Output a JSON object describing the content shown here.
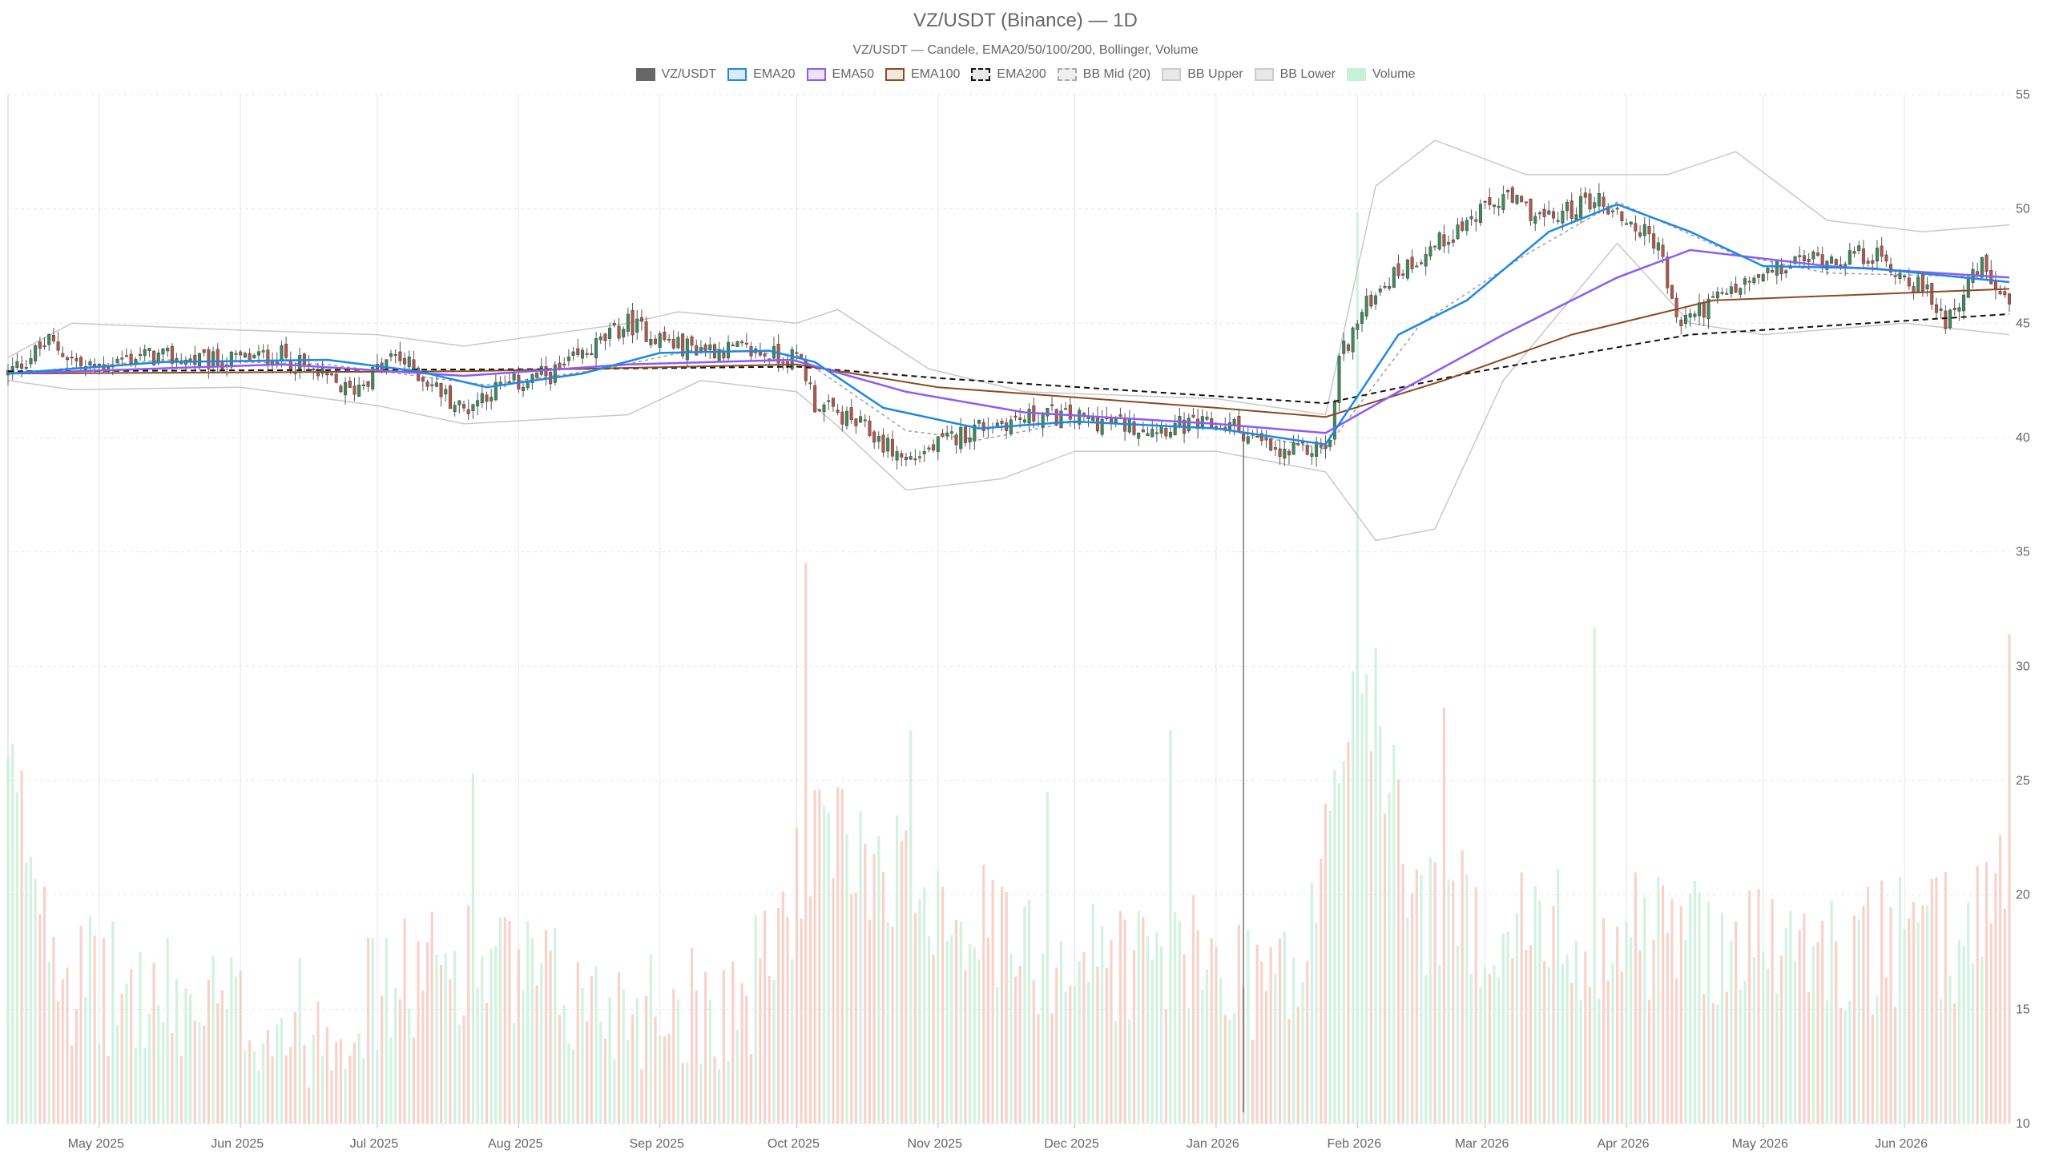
{
  "chart_data": {
    "type": "candlestick",
    "title": "VZ/USDT (Binance) — 1D",
    "subtitle": "VZ/USDT — Candele, EMA20/50/100/200, Bollinger, Volume",
    "legend": [
      {
        "label": "VZ/USDT",
        "fill": "#666666",
        "stroke": "#666666",
        "dash": false
      },
      {
        "label": "EMA20",
        "fill": "#dbeafe",
        "stroke": "#1e88e5",
        "dash": false
      },
      {
        "label": "EMA50",
        "fill": "#ede4fb",
        "stroke": "#8b5cf6",
        "dash": false
      },
      {
        "label": "EMA100",
        "fill": "#f3e6dc",
        "stroke": "#8b4a24",
        "dash": false
      },
      {
        "label": "EMA200",
        "fill": "#e8e8e8",
        "stroke": "#111111",
        "dash": true
      },
      {
        "label": "BB Mid (20)",
        "fill": "#efefef",
        "stroke": "#aaaaaa",
        "dash": true
      },
      {
        "label": "BB Upper",
        "fill": "#e8e8e8",
        "stroke": "#cccccc",
        "dash": false
      },
      {
        "label": "BB Lower",
        "fill": "#e8e8e8",
        "stroke": "#cccccc",
        "dash": false
      },
      {
        "label": "Volume",
        "fill": "#c8f0d8",
        "stroke": "#c8f0d8",
        "dash": false
      }
    ],
    "colors": {
      "up": "#3d8a5a",
      "down": "#b5564a",
      "vol_up": "#c8f0d8",
      "vol_down": "#f8c9c0",
      "ema20": "#1e88e5",
      "ema50": "#8b5cf6",
      "ema100": "#8b4a24",
      "ema200": "#111111",
      "bb_band": "#c8c8c8",
      "bb_mid": "#9e9e9e",
      "grid": "#e6e6e6"
    },
    "x_axis": {
      "start": "2025-04-11",
      "end": "2026-06-24",
      "ticks": [
        {
          "date": "2025-05-01",
          "label": "May 2025"
        },
        {
          "date": "2025-06-01",
          "label": "Jun 2025"
        },
        {
          "date": "2025-07-01",
          "label": "Jul 2025"
        },
        {
          "date": "2025-08-01",
          "label": "Aug 2025"
        },
        {
          "date": "2025-09-01",
          "label": "Sep 2025"
        },
        {
          "date": "2025-10-01",
          "label": "Oct 2025"
        },
        {
          "date": "2025-11-01",
          "label": "Nov 2025"
        },
        {
          "date": "2025-12-01",
          "label": "Dec 2025"
        },
        {
          "date": "2026-01-01",
          "label": "Jan 2026"
        },
        {
          "date": "2026-02-01",
          "label": "Feb 2026"
        },
        {
          "date": "2026-03-01",
          "label": "Mar 2026"
        },
        {
          "date": "2026-04-01",
          "label": "Apr 2026"
        },
        {
          "date": "2026-05-01",
          "label": "May 2026"
        },
        {
          "date": "2026-06-01",
          "label": "Jun 2026"
        }
      ]
    },
    "y_axis": {
      "min": 10,
      "max": 55,
      "ticks": [
        10,
        15,
        20,
        25,
        30,
        35,
        40,
        45,
        50,
        55
      ],
      "position": "right"
    },
    "volume_scale_max": 55,
    "price_path": [
      {
        "date": "2025-04-11",
        "close": 42.8
      },
      {
        "date": "2025-04-20",
        "close": 44.2
      },
      {
        "date": "2025-04-28",
        "close": 43.0
      },
      {
        "date": "2025-05-10",
        "close": 43.6
      },
      {
        "date": "2025-05-25",
        "close": 43.3
      },
      {
        "date": "2025-06-10",
        "close": 43.6
      },
      {
        "date": "2025-06-25",
        "close": 42.0
      },
      {
        "date": "2025-07-05",
        "close": 43.6
      },
      {
        "date": "2025-07-20",
        "close": 41.2
      },
      {
        "date": "2025-07-25",
        "close": 42.0
      },
      {
        "date": "2025-08-10",
        "close": 42.9
      },
      {
        "date": "2025-08-25",
        "close": 45.0
      },
      {
        "date": "2025-09-05",
        "close": 44.0
      },
      {
        "date": "2025-09-20",
        "close": 43.8
      },
      {
        "date": "2025-10-02",
        "close": 43.4
      },
      {
        "date": "2025-10-05",
        "close": 41.5
      },
      {
        "date": "2025-10-15",
        "close": 40.5
      },
      {
        "date": "2025-10-25",
        "close": 39.0
      },
      {
        "date": "2025-11-10",
        "close": 40.5
      },
      {
        "date": "2025-11-25",
        "close": 41.0
      },
      {
        "date": "2025-12-15",
        "close": 40.5
      },
      {
        "date": "2026-01-05",
        "close": 40.5
      },
      {
        "date": "2026-01-15",
        "close": 39.2
      },
      {
        "date": "2026-01-26",
        "close": 39.7
      },
      {
        "date": "2026-01-28",
        "close": 43.5
      },
      {
        "date": "2026-02-05",
        "close": 46.5
      },
      {
        "date": "2026-02-15",
        "close": 48.0
      },
      {
        "date": "2026-03-05",
        "close": 50.5
      },
      {
        "date": "2026-03-15",
        "close": 49.5
      },
      {
        "date": "2026-03-25",
        "close": 50.5
      },
      {
        "date": "2026-04-08",
        "close": 48.5
      },
      {
        "date": "2026-04-12",
        "close": 45.0
      },
      {
        "date": "2026-04-25",
        "close": 46.5
      },
      {
        "date": "2026-05-10",
        "close": 47.8
      },
      {
        "date": "2026-05-25",
        "close": 48.0
      },
      {
        "date": "2026-06-05",
        "close": 46.5
      },
      {
        "date": "2026-06-10",
        "close": 45.2
      },
      {
        "date": "2026-06-18",
        "close": 47.5
      },
      {
        "date": "2026-06-24",
        "close": 45.5
      }
    ],
    "ema20": [
      {
        "date": "2025-04-11",
        "v": 42.8
      },
      {
        "date": "2025-05-15",
        "v": 43.3
      },
      {
        "date": "2025-06-20",
        "v": 43.4
      },
      {
        "date": "2025-07-10",
        "v": 42.9
      },
      {
        "date": "2025-07-25",
        "v": 42.2
      },
      {
        "date": "2025-08-15",
        "v": 42.8
      },
      {
        "date": "2025-09-01",
        "v": 43.7
      },
      {
        "date": "2025-09-25",
        "v": 43.8
      },
      {
        "date": "2025-10-05",
        "v": 43.3
      },
      {
        "date": "2025-10-20",
        "v": 41.3
      },
      {
        "date": "2025-11-10",
        "v": 40.4
      },
      {
        "date": "2025-12-01",
        "v": 40.7
      },
      {
        "date": "2026-01-01",
        "v": 40.4
      },
      {
        "date": "2026-01-25",
        "v": 39.7
      },
      {
        "date": "2026-02-10",
        "v": 44.5
      },
      {
        "date": "2026-02-25",
        "v": 46.0
      },
      {
        "date": "2026-03-15",
        "v": 49.0
      },
      {
        "date": "2026-03-30",
        "v": 50.2
      },
      {
        "date": "2026-04-15",
        "v": 49.0
      },
      {
        "date": "2026-05-01",
        "v": 47.5
      },
      {
        "date": "2026-05-25",
        "v": 47.4
      },
      {
        "date": "2026-06-24",
        "v": 46.8
      }
    ],
    "ema50": [
      {
        "date": "2025-04-11",
        "v": 42.8
      },
      {
        "date": "2025-06-10",
        "v": 43.2
      },
      {
        "date": "2025-07-20",
        "v": 42.7
      },
      {
        "date": "2025-08-25",
        "v": 43.2
      },
      {
        "date": "2025-09-30",
        "v": 43.4
      },
      {
        "date": "2025-10-25",
        "v": 42.0
      },
      {
        "date": "2025-11-20",
        "v": 41.1
      },
      {
        "date": "2026-01-01",
        "v": 40.6
      },
      {
        "date": "2026-01-25",
        "v": 40.2
      },
      {
        "date": "2026-02-10",
        "v": 42.0
      },
      {
        "date": "2026-03-05",
        "v": 44.5
      },
      {
        "date": "2026-03-30",
        "v": 47.0
      },
      {
        "date": "2026-04-15",
        "v": 48.2
      },
      {
        "date": "2026-05-15",
        "v": 47.5
      },
      {
        "date": "2026-06-24",
        "v": 47.0
      }
    ],
    "ema100": [
      {
        "date": "2025-04-11",
        "v": 42.8
      },
      {
        "date": "2025-07-20",
        "v": 42.9
      },
      {
        "date": "2025-10-01",
        "v": 43.2
      },
      {
        "date": "2025-11-01",
        "v": 42.2
      },
      {
        "date": "2026-01-01",
        "v": 41.3
      },
      {
        "date": "2026-01-25",
        "v": 40.9
      },
      {
        "date": "2026-02-20",
        "v": 42.5
      },
      {
        "date": "2026-03-20",
        "v": 44.5
      },
      {
        "date": "2026-04-20",
        "v": 46.0
      },
      {
        "date": "2026-06-24",
        "v": 46.5
      }
    ],
    "ema200": [
      {
        "date": "2025-04-11",
        "v": 42.9
      },
      {
        "date": "2025-08-15",
        "v": 43.0
      },
      {
        "date": "2025-10-01",
        "v": 43.1
      },
      {
        "date": "2025-11-01",
        "v": 42.6
      },
      {
        "date": "2026-01-25",
        "v": 41.5
      },
      {
        "date": "2026-02-25",
        "v": 42.8
      },
      {
        "date": "2026-04-15",
        "v": 44.5
      },
      {
        "date": "2026-06-24",
        "v": 45.4
      }
    ],
    "bb_mid": [
      {
        "date": "2025-04-11",
        "v": 42.8
      },
      {
        "date": "2025-05-15",
        "v": 43.4
      },
      {
        "date": "2025-06-20",
        "v": 43.2
      },
      {
        "date": "2025-07-25",
        "v": 42.3
      },
      {
        "date": "2025-08-20",
        "v": 43.0
      },
      {
        "date": "2025-09-10",
        "v": 43.9
      },
      {
        "date": "2025-10-01",
        "v": 43.6
      },
      {
        "date": "2025-10-25",
        "v": 40.3
      },
      {
        "date": "2025-11-10",
        "v": 39.9
      },
      {
        "date": "2025-12-01",
        "v": 40.7
      },
      {
        "date": "2026-01-01",
        "v": 40.4
      },
      {
        "date": "2026-01-25",
        "v": 39.5
      },
      {
        "date": "2026-02-15",
        "v": 45.0
      },
      {
        "date": "2026-03-10",
        "v": 48.0
      },
      {
        "date": "2026-03-30",
        "v": 50.3
      },
      {
        "date": "2026-04-25",
        "v": 48.0
      },
      {
        "date": "2026-05-15",
        "v": 47.2
      },
      {
        "date": "2026-06-24",
        "v": 47.0
      }
    ],
    "bb_upper": [
      {
        "date": "2025-04-11",
        "v": 43.5
      },
      {
        "date": "2025-04-25",
        "v": 45.0
      },
      {
        "date": "2025-06-01",
        "v": 44.7
      },
      {
        "date": "2025-07-01",
        "v": 44.5
      },
      {
        "date": "2025-07-20",
        "v": 44.0
      },
      {
        "date": "2025-08-25",
        "v": 45.0
      },
      {
        "date": "2025-09-05",
        "v": 45.5
      },
      {
        "date": "2025-10-01",
        "v": 45.0
      },
      {
        "date": "2025-10-10",
        "v": 45.6
      },
      {
        "date": "2025-10-30",
        "v": 43.0
      },
      {
        "date": "2025-11-20",
        "v": 42.0
      },
      {
        "date": "2026-01-01",
        "v": 41.7
      },
      {
        "date": "2026-01-25",
        "v": 41.0
      },
      {
        "date": "2026-02-05",
        "v": 51.0
      },
      {
        "date": "2026-02-18",
        "v": 53.0
      },
      {
        "date": "2026-03-10",
        "v": 51.5
      },
      {
        "date": "2026-04-10",
        "v": 51.5
      },
      {
        "date": "2026-04-25",
        "v": 52.5
      },
      {
        "date": "2026-05-15",
        "v": 49.5
      },
      {
        "date": "2026-06-05",
        "v": 49.0
      },
      {
        "date": "2026-06-24",
        "v": 49.3
      }
    ],
    "bb_lower": [
      {
        "date": "2025-04-11",
        "v": 42.5
      },
      {
        "date": "2025-04-25",
        "v": 42.1
      },
      {
        "date": "2025-06-01",
        "v": 42.2
      },
      {
        "date": "2025-07-01",
        "v": 41.4
      },
      {
        "date": "2025-07-20",
        "v": 40.6
      },
      {
        "date": "2025-08-25",
        "v": 41.0
      },
      {
        "date": "2025-09-10",
        "v": 42.5
      },
      {
        "date": "2025-10-01",
        "v": 42.0
      },
      {
        "date": "2025-10-10",
        "v": 40.5
      },
      {
        "date": "2025-10-25",
        "v": 37.7
      },
      {
        "date": "2025-11-15",
        "v": 38.2
      },
      {
        "date": "2025-12-01",
        "v": 39.4
      },
      {
        "date": "2026-01-01",
        "v": 39.4
      },
      {
        "date": "2026-01-25",
        "v": 38.5
      },
      {
        "date": "2026-02-05",
        "v": 35.5
      },
      {
        "date": "2026-02-18",
        "v": 36.0
      },
      {
        "date": "2026-03-05",
        "v": 42.5
      },
      {
        "date": "2026-03-30",
        "v": 48.5
      },
      {
        "date": "2026-04-15",
        "v": 45.0
      },
      {
        "date": "2026-05-01",
        "v": 44.5
      },
      {
        "date": "2026-06-01",
        "v": 45.0
      },
      {
        "date": "2026-06-24",
        "v": 44.5
      }
    ],
    "volume_profile": [
      {
        "date": "2025-04-11",
        "v": 25
      },
      {
        "date": "2025-04-25",
        "v": 16
      },
      {
        "date": "2025-05-15",
        "v": 15
      },
      {
        "date": "2025-06-15",
        "v": 14
      },
      {
        "date": "2025-07-20",
        "v": 17
      },
      {
        "date": "2025-08-15",
        "v": 15
      },
      {
        "date": "2025-09-20",
        "v": 15
      },
      {
        "date": "2025-10-05",
        "v": 22
      },
      {
        "date": "2025-10-25",
        "v": 21
      },
      {
        "date": "2025-11-20",
        "v": 17
      },
      {
        "date": "2025-12-20",
        "v": 17
      },
      {
        "date": "2026-01-20",
        "v": 16
      },
      {
        "date": "2026-02-01",
        "v": 30
      },
      {
        "date": "2026-02-15",
        "v": 19
      },
      {
        "date": "2026-03-15",
        "v": 18
      },
      {
        "date": "2026-04-15",
        "v": 18
      },
      {
        "date": "2026-05-15",
        "v": 17
      },
      {
        "date": "2026-06-15",
        "v": 18
      },
      {
        "date": "2026-06-24",
        "v": 22
      }
    ],
    "volume_spikes": [
      {
        "date": "2025-04-11",
        "v": 26.0
      },
      {
        "date": "2025-07-22",
        "v": 25.3
      },
      {
        "date": "2025-10-03",
        "v": 34.5
      },
      {
        "date": "2025-10-26",
        "v": 27.2
      },
      {
        "date": "2025-11-25",
        "v": 24.5
      },
      {
        "date": "2025-12-22",
        "v": 27.2
      },
      {
        "date": "2026-02-01",
        "v": 49.8
      },
      {
        "date": "2026-02-05",
        "v": 30.8
      },
      {
        "date": "2026-02-20",
        "v": 28.2
      },
      {
        "date": "2026-03-25",
        "v": 31.7
      },
      {
        "date": "2026-06-24",
        "v": 31.4
      }
    ],
    "outlier_wick": {
      "date": "2026-01-07",
      "low": 10.5,
      "high": 40.5
    }
  }
}
